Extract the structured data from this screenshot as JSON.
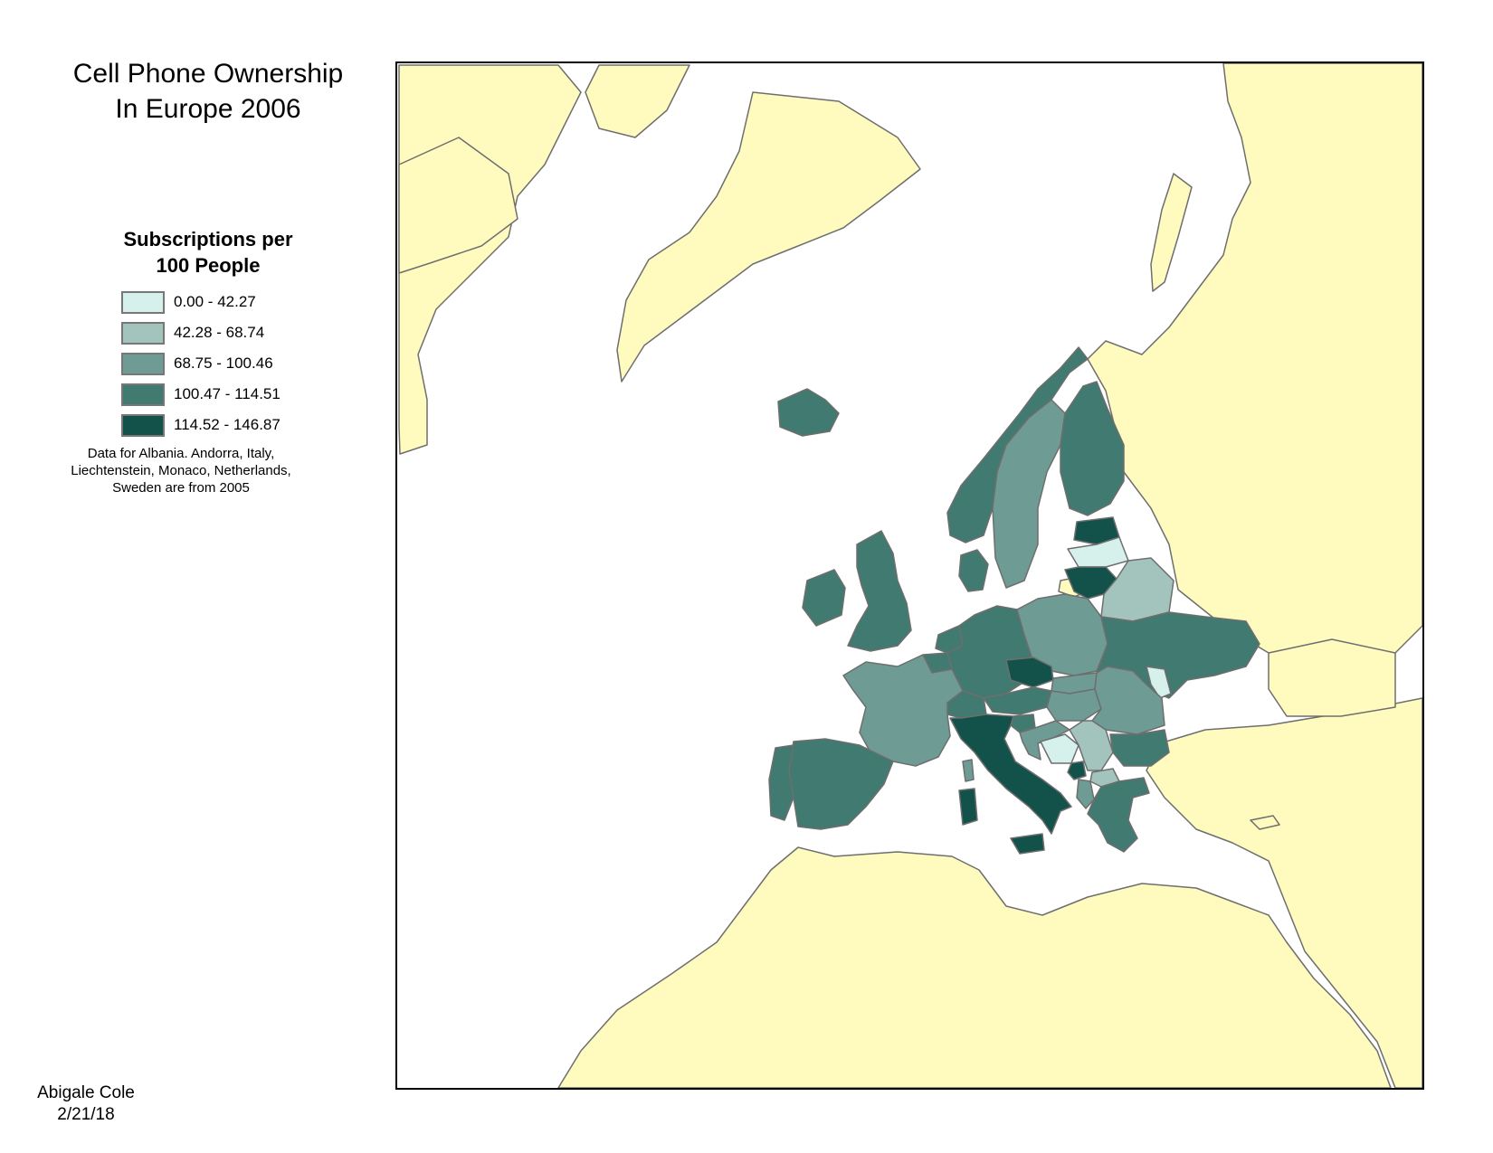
{
  "title": {
    "line1": "Cell Phone Ownership",
    "line2": "In Europe 2006"
  },
  "legend": {
    "heading_line1": "Subscriptions per",
    "heading_line2": "100 People",
    "classes": [
      {
        "label": "0.00 - 42.27",
        "color": "#d6f0ec"
      },
      {
        "label": "42.28 - 68.74",
        "color": "#a3c4bd"
      },
      {
        "label": "68.75 - 100.46",
        "color": "#6e9c95"
      },
      {
        "label": "100.47 - 114.51",
        "color": "#417a70"
      },
      {
        "label": "114.52 - 146.87",
        "color": "#12524a"
      }
    ]
  },
  "note": {
    "line1": "Data for Albania. Andorra, Italy,",
    "line2": "Liechtenstein, Monaco, Netherlands,",
    "line3": "Sweden are from 2005"
  },
  "credit": {
    "author": "Abigale Cole",
    "date": "2/21/18"
  },
  "map": {
    "land_color": "#fffbbf",
    "water_color": "#ffffff",
    "border_color": "#6e6e6e",
    "country_classes": {
      "iceland": 3,
      "ireland": 3,
      "united-kingdom": 3,
      "norway": 3,
      "sweden": 2,
      "finland": 3,
      "estonia": 4,
      "latvia": 0,
      "lithuania": 4,
      "belarus": 1,
      "poland": 2,
      "germany": 3,
      "netherlands": 3,
      "belgium": 3,
      "france": 2,
      "spain": 3,
      "portugal": 3,
      "switzerland": 3,
      "austria": 3,
      "czech-republic": 4,
      "slovakia": 2,
      "hungary": 2,
      "ukraine": 3,
      "moldova": 0,
      "romania": 2,
      "bulgaria": 3,
      "italy": 4,
      "slovenia": 3,
      "croatia": 2,
      "bosnia": 0,
      "serbia": 1,
      "montenegro": 4,
      "macedonia": 1,
      "albania": 2,
      "greece": 3,
      "denmark": 3,
      "corsica": 2,
      "sardinia": 4,
      "sicily": 4
    }
  }
}
